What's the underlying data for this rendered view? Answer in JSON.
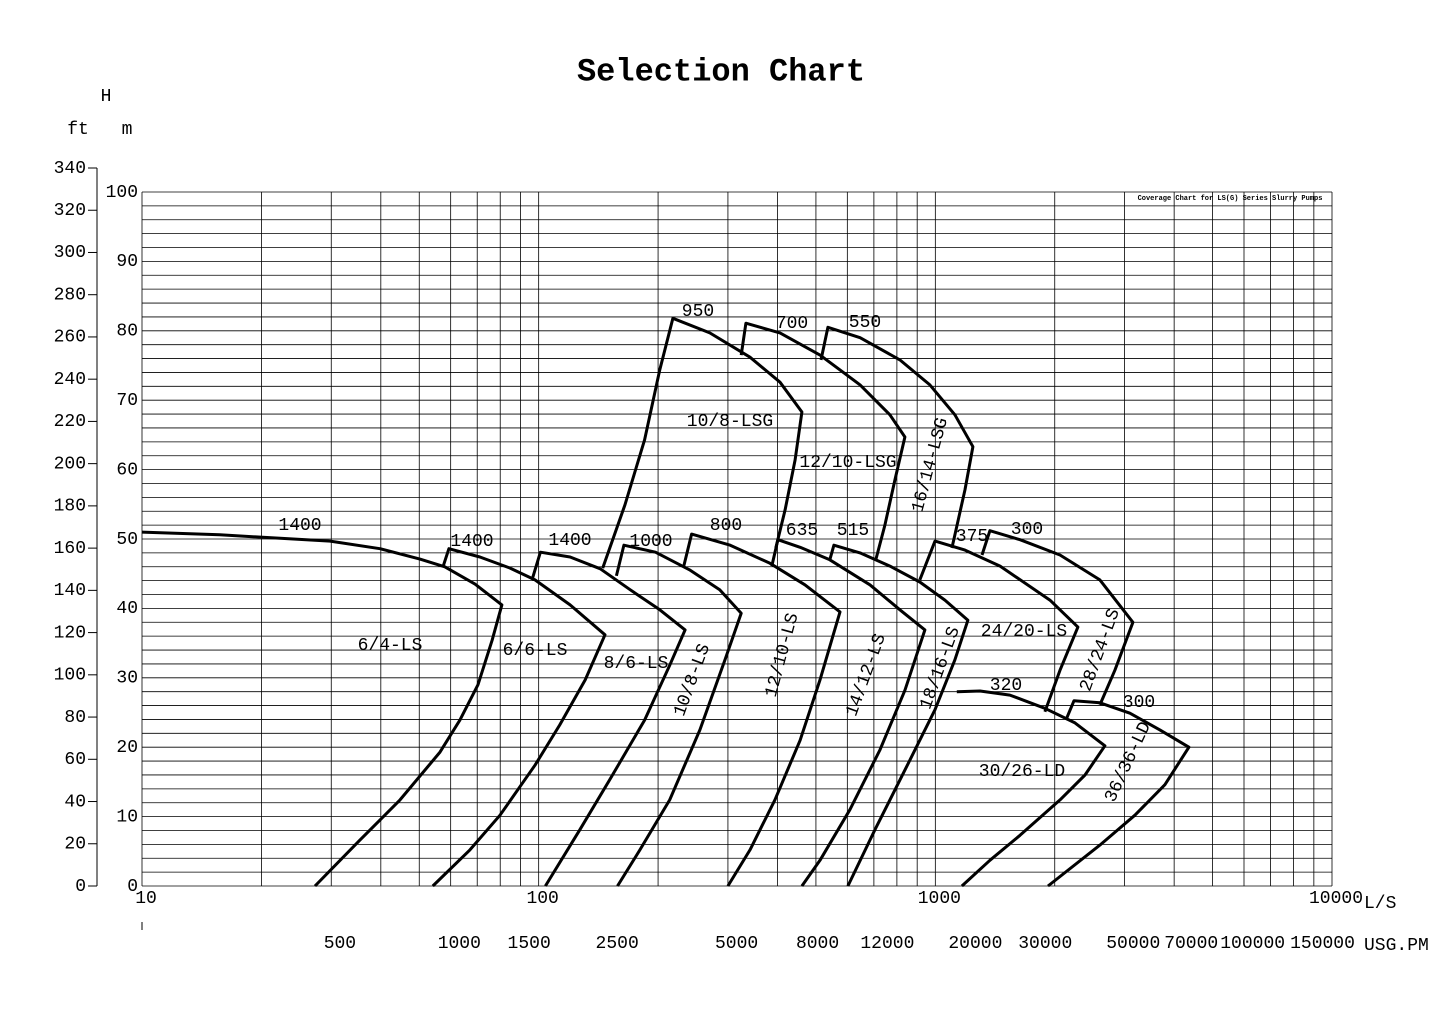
{
  "chart_data": {
    "type": "line",
    "title": "Selection Chart",
    "annotation": "Coverage Chart for LS(G) Series Slurry Pumps",
    "ylabel": "H",
    "y_unit": "m",
    "y2_unit": "ft",
    "x_unit": "L/S",
    "x2_unit": "USG.PM",
    "log_x": true,
    "xlim": [
      10,
      10000
    ],
    "xticks": [
      10,
      100,
      1000,
      10000
    ],
    "x2lim": [
      158.5,
      158500
    ],
    "x2ticks": [
      500,
      1000,
      1500,
      2500,
      5000,
      8000,
      12000,
      20000,
      30000,
      50000,
      70000,
      100000,
      150000
    ],
    "ylim": [
      0,
      100
    ],
    "yticks": [
      0,
      10,
      20,
      30,
      40,
      50,
      60,
      70,
      80,
      90,
      100
    ],
    "y2lim": [
      0,
      340
    ],
    "y2ticks": [
      0,
      20,
      40,
      60,
      80,
      100,
      120,
      140,
      160,
      180,
      200,
      220,
      240,
      260,
      280,
      300,
      320,
      340
    ],
    "grid": true,
    "xgrid": [
      10,
      20,
      30,
      40,
      50,
      60,
      70,
      80,
      90,
      100,
      200,
      300,
      400,
      500,
      600,
      700,
      800,
      900,
      1000,
      2000,
      3000,
      4000,
      5000,
      6000,
      7000,
      8000,
      9000,
      10000
    ],
    "ygrid": [
      0,
      2,
      4,
      6,
      8,
      10,
      12,
      14,
      16,
      18,
      20,
      22,
      24,
      26,
      28,
      30,
      32,
      34,
      36,
      38,
      40,
      42,
      44,
      46,
      48,
      50,
      52,
      54,
      56,
      58,
      60,
      62,
      64,
      66,
      68,
      70,
      72,
      74,
      76,
      78,
      80,
      82,
      84,
      86,
      88,
      90,
      92,
      94,
      96,
      98,
      100
    ],
    "series": [
      {
        "name": "6/4-LS",
        "speed": 1400,
        "color": "#000000",
        "x": [
          10,
          15.7,
          22.3,
          29.8,
          39.8,
          50.2,
          58.0,
          69.1,
          80.8,
          76.3,
          70.3,
          63.3,
          56.4,
          44.7,
          35.4,
          27.3
        ],
        "values": [
          51.0,
          50.6,
          50.1,
          49.7,
          48.6,
          47.1,
          46.0,
          43.5,
          40.5,
          35.4,
          29.0,
          23.9,
          19.3,
          12.4,
          6.6,
          0
        ]
      },
      {
        "name": "6/6-LS",
        "speed": 1400,
        "color": "#000000",
        "x": [
          57.4,
          59.4,
          71.1,
          84.7,
          97.9,
          120,
          147,
          131,
          113,
          97.9,
          79.9,
          67.1,
          54.1
        ],
        "values": [
          46.0,
          48.6,
          47.4,
          45.8,
          44.1,
          40.5,
          36.2,
          29.7,
          23.2,
          17.4,
          10.2,
          5.2,
          0
        ]
      },
      {
        "name": "8/6-LS",
        "speed": 1400,
        "color": "#000000",
        "x": [
          96.2,
          101,
          120,
          143,
          170,
          202,
          234,
          214,
          185,
          151,
          127,
          104
        ],
        "values": [
          44.1,
          48.1,
          47.4,
          45.7,
          42.7,
          39.8,
          36.9,
          31.8,
          23.9,
          15.3,
          8.1,
          0
        ]
      },
      {
        "name": "10/8-LS",
        "speed": 1000,
        "color": "#000000",
        "x": [
          157,
          164,
          197,
          241,
          286,
          324,
          295,
          255,
          214,
          180,
          158
        ],
        "values": [
          44.7,
          49.1,
          48.1,
          45.5,
          42.7,
          39.3,
          32.6,
          22.5,
          12.4,
          5.2,
          0
        ]
      },
      {
        "name": "12/10-LS",
        "speed": 800,
        "color": "#000000",
        "x": [
          232,
          243,
          304,
          383,
          469,
          575,
          512,
          456,
          394,
          341,
          300
        ],
        "values": [
          46.0,
          50.7,
          49.1,
          46.5,
          43.4,
          39.5,
          29.7,
          21.0,
          12.4,
          5.2,
          0
        ]
      },
      {
        "name": "14/12-LS",
        "speed": 635,
        "color": "#000000",
        "x": [
          387,
          401,
          456,
          542,
          684,
          814,
          941,
          838,
          725,
          609,
          512,
          461
        ],
        "values": [
          46.1,
          49.9,
          48.8,
          47.0,
          43.4,
          39.8,
          36.9,
          28.2,
          19.6,
          11.0,
          3.7,
          0
        ]
      },
      {
        "name": "18/16-LS",
        "speed": 515,
        "color": "#000000",
        "x": [
          542,
          555,
          646,
          768,
          914,
          1057,
          1208,
          1120,
          998,
          838,
          704,
          602
        ],
        "values": [
          47.0,
          49.1,
          48.0,
          46.1,
          43.8,
          41.2,
          38.3,
          32.6,
          25.4,
          16.7,
          8.1,
          0
        ]
      },
      {
        "name": "24/20-LS",
        "speed": 375,
        "color": "#000000",
        "x": [
          914,
          998,
          1188,
          1456,
          1945,
          2288,
          2062,
          1889
        ],
        "values": [
          44.1,
          49.7,
          48.4,
          46.1,
          41.2,
          37.3,
          31.1,
          25.1
        ]
      },
      {
        "name": "28/24-LS",
        "speed": 300,
        "color": "#000000",
        "x": [
          1311,
          1373,
          1635,
          2062,
          2599,
          3148,
          2836,
          2599
        ],
        "values": [
          47.7,
          51.2,
          49.9,
          47.7,
          44.1,
          38.0,
          31.1,
          26.1
        ]
      },
      {
        "name": "30/26-LD",
        "speed": 320,
        "color": "#000000",
        "x": [
          1133,
          1296,
          1542,
          1889,
          2249,
          2676,
          2384,
          2062,
          1635,
          1373,
          1167
        ],
        "values": [
          28.0,
          28.1,
          27.5,
          25.6,
          23.5,
          20.2,
          16.0,
          12.4,
          7.3,
          3.7,
          0
        ]
      },
      {
        "name": "36/36-LD",
        "speed": 300,
        "color": "#000000",
        "x": [
          2134,
          2236,
          2599,
          3094,
          3683,
          4358,
          3791,
          3185,
          2599,
          1923
        ],
        "values": [
          23.9,
          26.7,
          26.4,
          24.9,
          22.5,
          20.0,
          14.6,
          10.2,
          5.9,
          0
        ]
      },
      {
        "name": "10/8-LSG",
        "speed": 950,
        "color": "#000000",
        "x": [
          145,
          165,
          185,
          202,
          218,
          270,
          341,
          406,
          461,
          443,
          418,
          396
        ],
        "values": [
          45.8,
          54.9,
          64.3,
          74.4,
          81.8,
          79.7,
          76.2,
          72.6,
          68.3,
          61.4,
          54.2,
          48.7
        ]
      },
      {
        "name": "12/10-LSG",
        "speed": 700,
        "color": "#000000",
        "x": [
          324,
          333,
          406,
          512,
          646,
          768,
          838,
          791,
          746,
          708
        ],
        "values": [
          76.5,
          81.1,
          79.7,
          76.5,
          72.2,
          67.9,
          64.7,
          58.5,
          52.0,
          47.0
        ]
      },
      {
        "name": "16/14-LSG",
        "speed": 550,
        "color": "#000000",
        "x": [
          515,
          536,
          646,
          814,
          969,
          1120,
          1244,
          1188,
          1120,
          1101
        ],
        "values": [
          75.8,
          80.5,
          79.0,
          75.8,
          72.2,
          67.9,
          63.3,
          57.1,
          50.6,
          48.7
        ]
      }
    ]
  }
}
